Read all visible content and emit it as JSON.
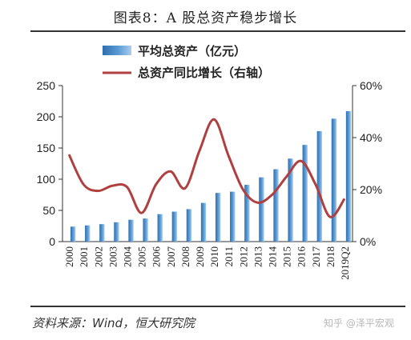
{
  "header": {
    "title": "图表8：A 股总资产稳步增长"
  },
  "footer": {
    "source": "资料来源：Wind，恒大研究院",
    "watermark": "知乎 @泽平宏观"
  },
  "colors": {
    "bar": "#5b9bd5",
    "bar_dark": "#2f6fae",
    "line": "#b0403f",
    "text": "#222222"
  },
  "chart_data": {
    "type": "bar+line",
    "categories": [
      "2000",
      "2001",
      "2002",
      "2003",
      "2004",
      "2005",
      "2006",
      "2007",
      "2008",
      "2009",
      "2010",
      "2011",
      "2012",
      "2013",
      "2014",
      "2015",
      "2016",
      "2017",
      "2018",
      "2019Q2"
    ],
    "series": [
      {
        "name": "平均总资产（亿元）",
        "type": "bar",
        "axis": "left",
        "values": [
          24,
          26,
          28,
          31,
          35,
          37,
          44,
          48,
          52,
          62,
          78,
          80,
          91,
          103,
          116,
          133,
          155,
          177,
          197,
          209
        ]
      },
      {
        "name": "总资产同比增长（右轴）",
        "type": "line",
        "axis": "right",
        "values": [
          33.5,
          22,
          19.5,
          21.5,
          21,
          11,
          22,
          27,
          20.5,
          35,
          47,
          33,
          20,
          15,
          18,
          25,
          31,
          22,
          9.5,
          16.5
        ]
      }
    ],
    "y_left": {
      "lim": [
        0,
        250
      ],
      "ticks": [
        "0",
        "50",
        "100",
        "150",
        "200",
        "250"
      ]
    },
    "y_right": {
      "lim": [
        0,
        60
      ],
      "ticks": [
        "0%",
        "20%",
        "40%",
        "60%"
      ]
    },
    "grid": false,
    "legend": "top"
  }
}
